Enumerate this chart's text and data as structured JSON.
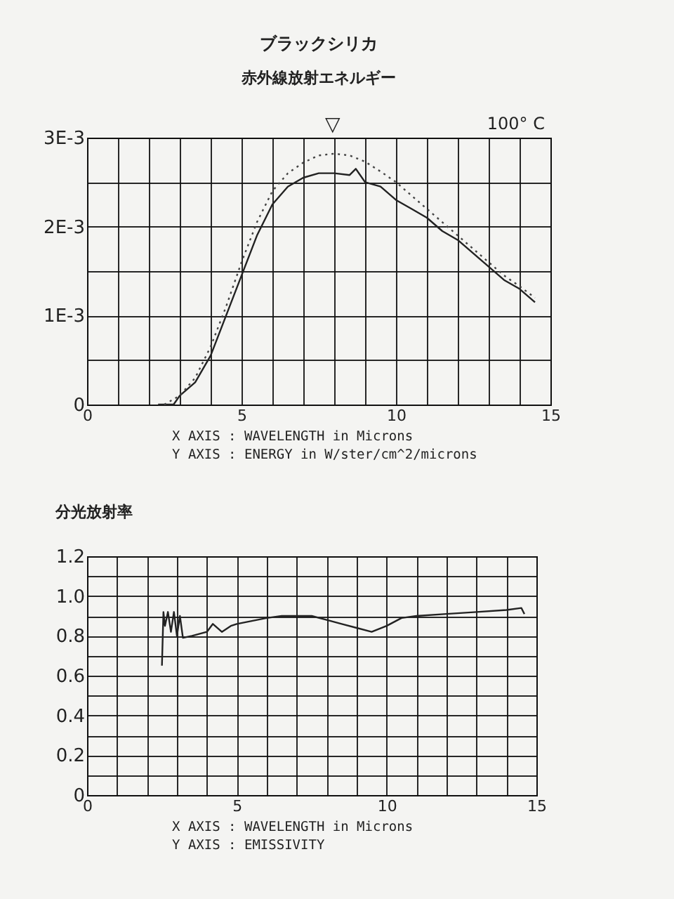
{
  "chart_data": [
    {
      "type": "line",
      "title": "ブラックシリカ",
      "subtitle": "赤外線放射エネルギー",
      "xlabel": "X AXIS : WAVELENGTH in Microns",
      "xlim": [
        0,
        15
      ],
      "ylim": [
        0,
        0.003
      ],
      "xticks": [
        0,
        {
          "value": 1,
          "label": null
        },
        {
          "value": 2,
          "label": null
        },
        {
          "value": 3,
          "label": null
        },
        {
          "value": 4,
          "label": null
        },
        5,
        {
          "value": 6,
          "label": null
        },
        {
          "value": 7,
          "label": null
        },
        {
          "value": 8,
          "label": null
        },
        {
          "value": 9,
          "label": null
        },
        10,
        {
          "value": 11,
          "label": null
        },
        {
          "value": 12,
          "label": null
        },
        {
          "value": 13,
          "label": null
        },
        {
          "value": 14,
          "label": null
        },
        15
      ],
      "yticks": [
        0,
        {
          "value": 0.0005,
          "label": null
        },
        {
          "value": 0.001,
          "label": "1E-3"
        },
        {
          "value": 0.0015,
          "label": null
        },
        {
          "value": 0.002,
          "label": "2E-3"
        },
        {
          "value": 0.0025,
          "label": null
        },
        {
          "value": 0.003,
          "label": "3E-3"
        }
      ],
      "grid": true,
      "legend": false,
      "annotations": [
        "100° C",
        "▽",
        "Y AXIS : ENERGY in W/ster/cm^2/microns"
      ],
      "series": [
        {
          "color": "#222222",
          "line_style": "solid",
          "x": [
            2.3,
            2.8,
            3,
            3.5,
            4,
            4.5,
            5,
            5.5,
            6,
            6.5,
            7,
            7.5,
            8,
            8.5,
            8.7,
            9,
            9.5,
            10,
            10.5,
            11,
            11.5,
            12,
            12.5,
            13,
            13.5,
            14,
            14.5
          ],
          "values": [
            0,
            0,
            0.0001,
            0.00025,
            0.00055,
            0.001,
            0.00145,
            0.0019,
            0.00225,
            0.00245,
            0.00255,
            0.0026,
            0.0026,
            0.00258,
            0.00265,
            0.0025,
            0.00245,
            0.0023,
            0.0022,
            0.0021,
            0.00195,
            0.00185,
            0.0017,
            0.00155,
            0.0014,
            0.0013,
            0.00115
          ]
        },
        {
          "color": "#444444",
          "line_style": "dotted",
          "x": [
            2.5,
            3,
            3.5,
            4,
            4.5,
            5,
            5.5,
            6,
            6.5,
            7,
            7.5,
            8,
            8.5,
            9,
            9.5,
            10,
            10.5,
            11,
            11.5,
            12,
            12.5,
            13,
            13.5,
            14,
            14.5
          ],
          "values": [
            0,
            0.0001,
            0.0003,
            0.00065,
            0.0011,
            0.0016,
            0.00205,
            0.0024,
            0.0026,
            0.00272,
            0.0028,
            0.00282,
            0.0028,
            0.00273,
            0.00262,
            0.0025,
            0.00235,
            0.0022,
            0.00205,
            0.0019,
            0.00175,
            0.0016,
            0.00145,
            0.00133,
            0.0012
          ]
        }
      ]
    },
    {
      "type": "line",
      "title": "分光放射率",
      "xlabel": "X AXIS : WAVELENGTH in Microns",
      "annotations": [
        "Y AXIS : EMISSIVITY"
      ],
      "xlim": [
        0,
        15
      ],
      "ylim": [
        0,
        1.2
      ],
      "xticks": [
        0,
        {
          "value": 1,
          "label": null
        },
        {
          "value": 2,
          "label": null
        },
        {
          "value": 3,
          "label": null
        },
        {
          "value": 4,
          "label": null
        },
        5,
        {
          "value": 6,
          "label": null
        },
        {
          "value": 7,
          "label": null
        },
        {
          "value": 8,
          "label": null
        },
        {
          "value": 9,
          "label": null
        },
        10,
        {
          "value": 11,
          "label": null
        },
        {
          "value": 12,
          "label": null
        },
        {
          "value": 13,
          "label": null
        },
        {
          "value": 14,
          "label": null
        },
        15
      ],
      "yticks": [
        0,
        {
          "value": 0.1,
          "label": null
        },
        0.2,
        {
          "value": 0.3,
          "label": null
        },
        0.4,
        {
          "value": 0.5,
          "label": null
        },
        0.6,
        {
          "value": 0.7,
          "label": null
        },
        0.8,
        {
          "value": 0.9,
          "label": null
        },
        {
          "value": 1,
          "label": "1.0"
        },
        {
          "value": 1.1,
          "label": null
        },
        1.2
      ],
      "grid": true,
      "legend": false,
      "series": [
        {
          "color": "#222222",
          "line_style": "solid",
          "x": [
            2.5,
            2.55,
            2.6,
            2.7,
            2.8,
            2.9,
            3,
            3.1,
            3.2,
            3.5,
            4,
            4.2,
            4.5,
            4.8,
            5,
            6,
            6.5,
            7,
            7.5,
            8,
            8.5,
            9,
            9.5,
            10,
            10.5,
            11,
            12,
            13,
            14,
            14.5,
            14.6
          ],
          "values": [
            0.65,
            0.92,
            0.85,
            0.92,
            0.82,
            0.92,
            0.8,
            0.9,
            0.79,
            0.8,
            0.82,
            0.86,
            0.82,
            0.85,
            0.86,
            0.89,
            0.9,
            0.9,
            0.9,
            0.88,
            0.86,
            0.84,
            0.82,
            0.85,
            0.89,
            0.9,
            0.91,
            0.92,
            0.93,
            0.94,
            0.91
          ]
        }
      ]
    }
  ]
}
